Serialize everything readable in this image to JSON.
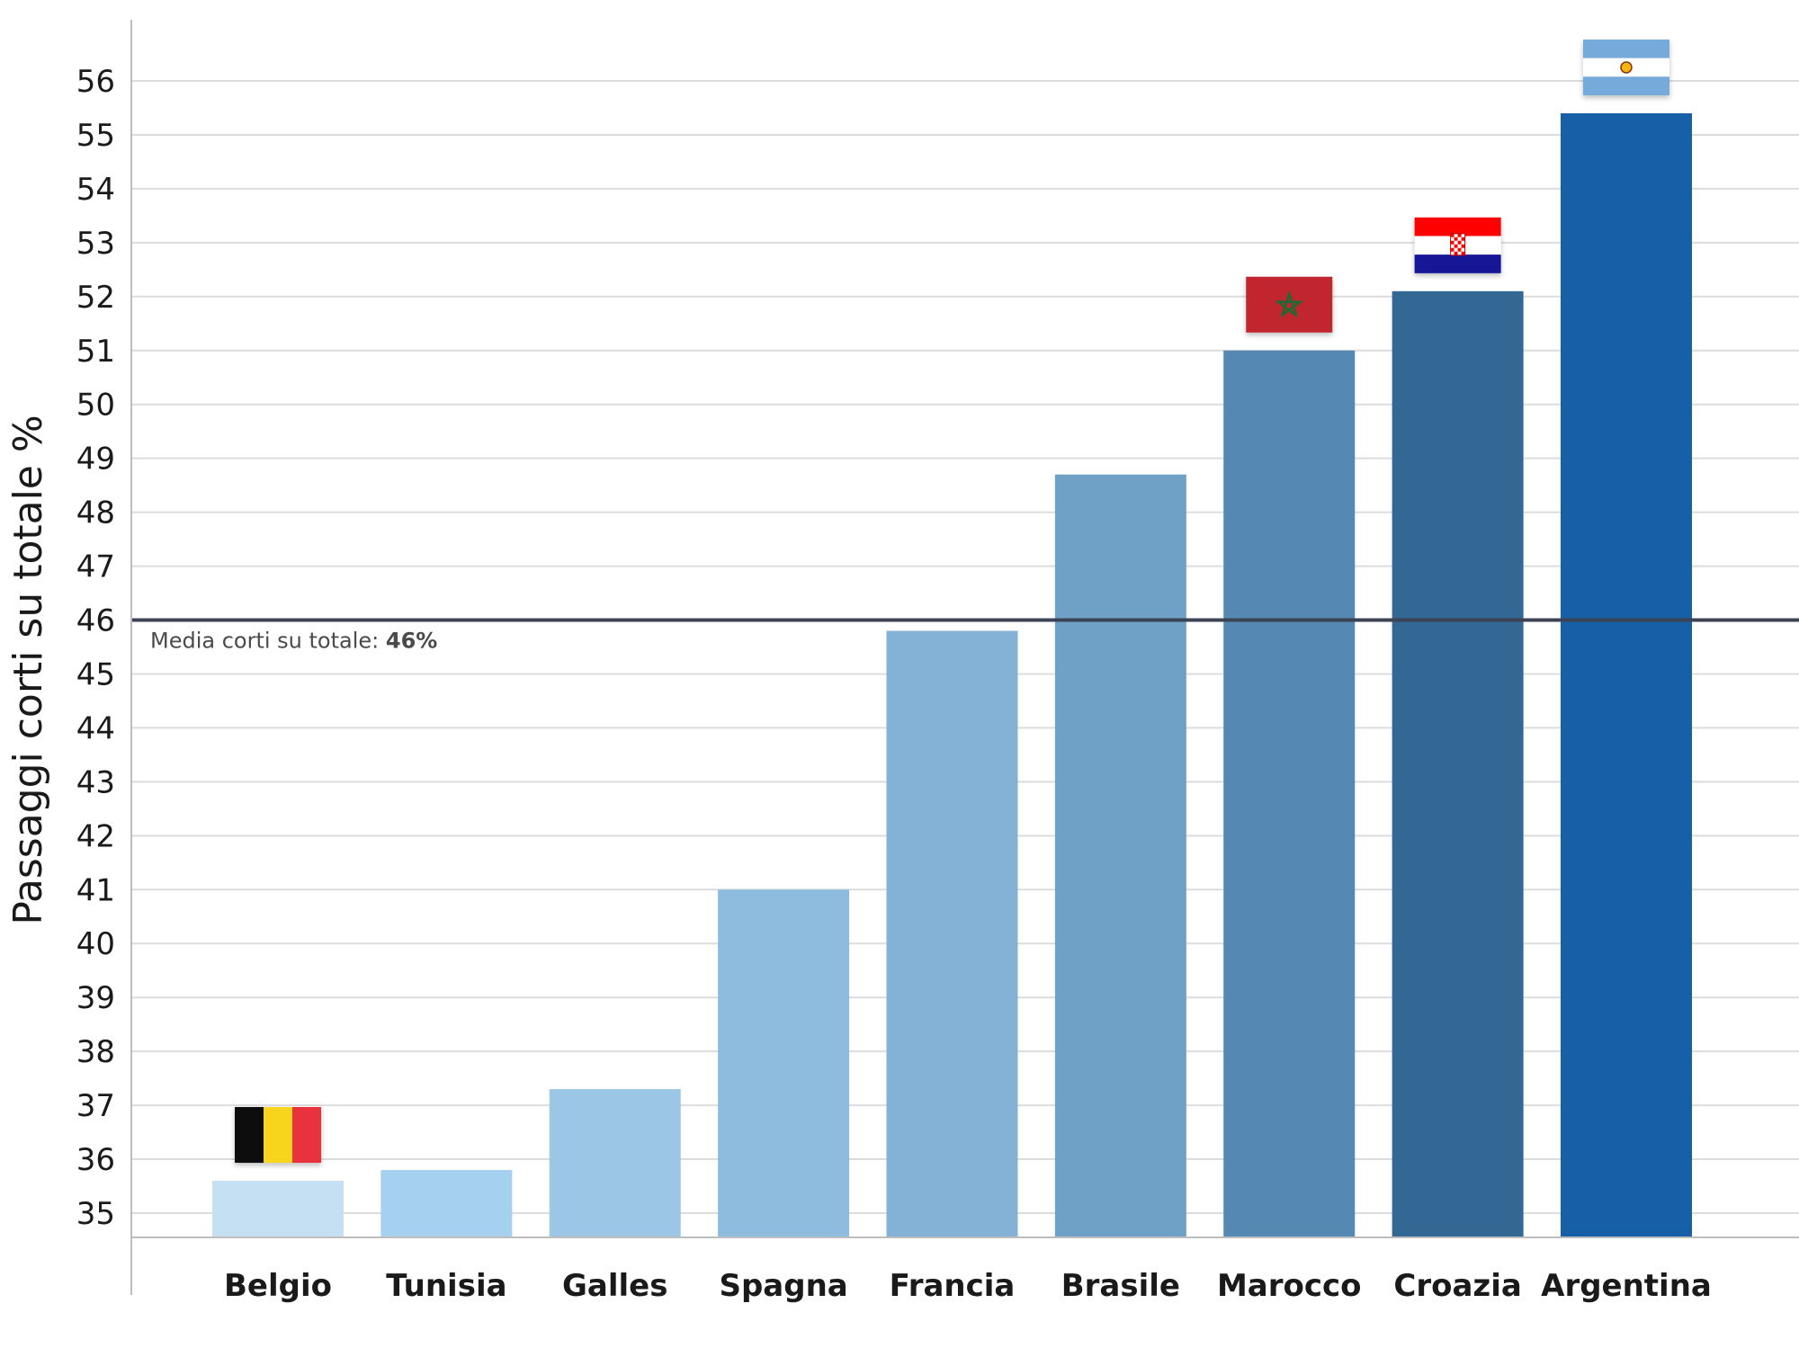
{
  "chart_data": {
    "type": "bar",
    "title": "",
    "xlabel": "",
    "ylabel": "Passaggi corti su totale %",
    "ylim": [
      35,
      56
    ],
    "yticks": [
      35,
      36,
      37,
      38,
      39,
      40,
      41,
      42,
      43,
      44,
      45,
      46,
      47,
      48,
      49,
      50,
      51,
      52,
      53,
      54,
      55,
      56
    ],
    "grid": true,
    "categories": [
      "Belgio",
      "Tunisia",
      "Galles",
      "Spagna",
      "Francia",
      "Brasile",
      "Marocco",
      "Croazia",
      "Argentina"
    ],
    "values": [
      35.6,
      35.8,
      37.3,
      41.0,
      45.8,
      48.7,
      51.0,
      52.1,
      55.4
    ],
    "bar_colors": [
      "#c4e0f2",
      "#a6d0ef",
      "#9bc6e6",
      "#8dbcdf",
      "#84b2d6",
      "#6fa1c7",
      "#5589b3",
      "#336895",
      "#175fa7"
    ],
    "reference_line": {
      "value": 46,
      "label_prefix": "Media corti su totale: ",
      "label_value": "46%",
      "color": "#3b4454"
    },
    "flags": [
      {
        "category": "Belgio",
        "icon": "belgium-flag-icon"
      },
      {
        "category": "Marocco",
        "icon": "morocco-flag-icon"
      },
      {
        "category": "Croazia",
        "icon": "croatia-flag-icon"
      },
      {
        "category": "Argentina",
        "icon": "argentina-flag-icon"
      }
    ]
  }
}
